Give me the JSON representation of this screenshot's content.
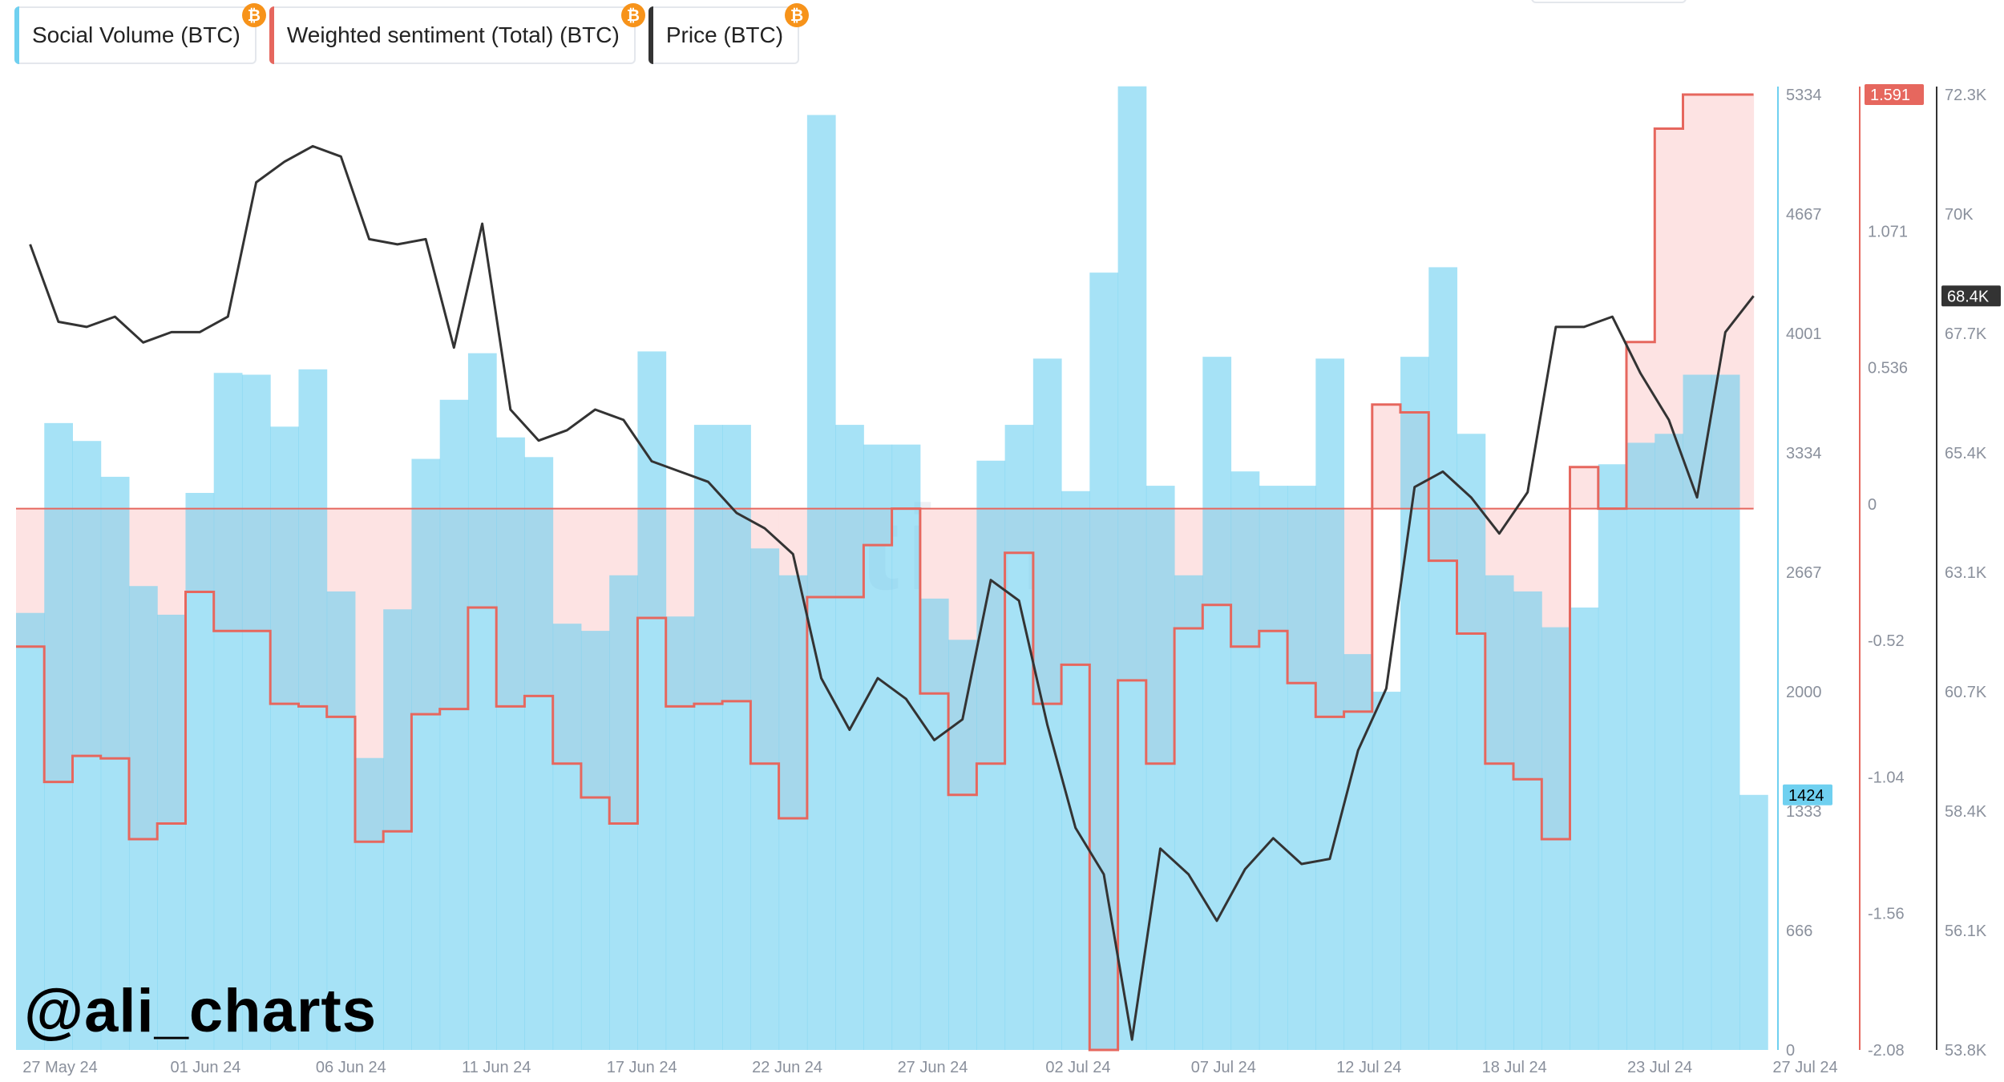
{
  "legend": [
    {
      "label": "Social Volume (BTC)",
      "color": "#6fd0f0",
      "icon": "bitcoin-icon"
    },
    {
      "label": "Weighted sentiment (Total) (BTC)",
      "color": "#e6675e",
      "icon": "bitcoin-icon"
    },
    {
      "label": "Price (BTC)",
      "color": "#333333",
      "icon": "bitcoin-icon"
    }
  ],
  "author_handle": "@ali_charts",
  "watermark": "santiment",
  "chart_data": {
    "type": "bar",
    "x_tick_labels": [
      "27 May 24",
      "01 Jun 24",
      "06 Jun 24",
      "11 Jun 24",
      "17 Jun 24",
      "22 Jun 24",
      "27 Jun 24",
      "02 Jul 24",
      "07 Jul 24",
      "12 Jul 24",
      "18 Jul 24",
      "23 Jul 24",
      "27 Jul 24"
    ],
    "x_range": [
      "2024-05-27",
      "2024-07-27"
    ],
    "axes": {
      "social_volume": {
        "ticks": [
          "5334",
          "4667",
          "4001",
          "3334",
          "2667",
          "2000",
          "1333",
          "666",
          "0"
        ],
        "range": [
          0,
          5334
        ],
        "current": "1424"
      },
      "sentiment": {
        "ticks": [
          "1.591",
          "1.071",
          "0.536",
          "0",
          "-0.52",
          "-1.04",
          "-1.56",
          "-2.08"
        ],
        "range": [
          -2.08,
          1.591
        ],
        "current": "1.591"
      },
      "price": {
        "ticks": [
          "72.3K",
          "70K",
          "67.7K",
          "65.4K",
          "63.1K",
          "60.7K",
          "58.4K",
          "56.1K",
          "53.8K"
        ],
        "range": [
          53800,
          72300
        ],
        "current": "68.4K"
      }
    },
    "series": [
      {
        "name": "Social Volume (BTC)",
        "type": "bar-step",
        "color": "#6fd0f0",
        "dates": [
          "2024-05-27",
          "2024-05-28",
          "2024-05-29",
          "2024-05-30",
          "2024-05-31",
          "2024-06-01",
          "2024-06-02",
          "2024-06-03",
          "2024-06-04",
          "2024-06-05",
          "2024-06-06",
          "2024-06-07",
          "2024-06-08",
          "2024-06-09",
          "2024-06-10",
          "2024-06-11",
          "2024-06-12",
          "2024-06-13",
          "2024-06-14",
          "2024-06-15",
          "2024-06-16",
          "2024-06-17",
          "2024-06-18",
          "2024-06-19",
          "2024-06-20",
          "2024-06-21",
          "2024-06-22",
          "2024-06-23",
          "2024-06-24",
          "2024-06-25",
          "2024-06-26",
          "2024-06-27",
          "2024-06-28",
          "2024-06-29",
          "2024-06-30",
          "2024-07-01",
          "2024-07-02",
          "2024-07-03",
          "2024-07-04",
          "2024-07-05",
          "2024-07-06",
          "2024-07-07",
          "2024-07-08",
          "2024-07-09",
          "2024-07-10",
          "2024-07-11",
          "2024-07-12",
          "2024-07-13",
          "2024-07-14",
          "2024-07-15",
          "2024-07-16",
          "2024-07-17",
          "2024-07-18",
          "2024-07-19",
          "2024-07-20",
          "2024-07-21",
          "2024-07-22",
          "2024-07-23",
          "2024-07-24",
          "2024-07-25",
          "2024-07-26",
          "2024-07-27"
        ],
        "values": [
          2440,
          3500,
          3400,
          3200,
          2590,
          2430,
          3110,
          3780,
          3770,
          3480,
          3800,
          2560,
          1630,
          2460,
          3300,
          3630,
          3890,
          3420,
          3310,
          2380,
          2340,
          2650,
          3900,
          2420,
          3490,
          3490,
          2800,
          2650,
          5220,
          3490,
          3380,
          3380,
          2520,
          2290,
          3290,
          3490,
          3860,
          3120,
          4340,
          5380,
          3150,
          2650,
          3870,
          3230,
          3150,
          3150,
          3860,
          2210,
          2000,
          3870,
          4370,
          3440,
          2650,
          2560,
          2360,
          2470,
          3270,
          3390,
          3440,
          3770,
          3770,
          1424
        ]
      },
      {
        "name": "Weighted sentiment (Total) (BTC)",
        "type": "step-line",
        "color": "#e6675e",
        "dates": [
          "2024-05-27",
          "2024-05-28",
          "2024-05-29",
          "2024-05-30",
          "2024-05-31",
          "2024-06-01",
          "2024-06-02",
          "2024-06-03",
          "2024-06-04",
          "2024-06-05",
          "2024-06-06",
          "2024-06-07",
          "2024-06-08",
          "2024-06-09",
          "2024-06-10",
          "2024-06-11",
          "2024-06-12",
          "2024-06-13",
          "2024-06-14",
          "2024-06-15",
          "2024-06-16",
          "2024-06-17",
          "2024-06-18",
          "2024-06-19",
          "2024-06-20",
          "2024-06-21",
          "2024-06-22",
          "2024-06-23",
          "2024-06-24",
          "2024-06-25",
          "2024-06-26",
          "2024-06-27",
          "2024-06-28",
          "2024-06-29",
          "2024-06-30",
          "2024-07-01",
          "2024-07-02",
          "2024-07-03",
          "2024-07-04",
          "2024-07-05",
          "2024-07-06",
          "2024-07-07",
          "2024-07-08",
          "2024-07-09",
          "2024-07-10",
          "2024-07-11",
          "2024-07-12",
          "2024-07-13",
          "2024-07-14",
          "2024-07-15",
          "2024-07-16",
          "2024-07-17",
          "2024-07-18",
          "2024-07-19",
          "2024-07-20",
          "2024-07-21",
          "2024-07-22",
          "2024-07-23",
          "2024-07-24",
          "2024-07-25",
          "2024-07-26",
          "2024-07-27"
        ],
        "values": [
          -0.53,
          -1.05,
          -0.95,
          -0.96,
          -1.27,
          -1.21,
          -0.32,
          -0.47,
          -0.47,
          -0.75,
          -0.76,
          -0.8,
          -1.28,
          -1.24,
          -0.79,
          -0.77,
          -0.38,
          -0.76,
          -0.72,
          -0.98,
          -1.11,
          -1.21,
          -0.42,
          -0.76,
          -0.75,
          -0.74,
          -0.98,
          -1.19,
          -0.34,
          -0.34,
          -0.14,
          0.0,
          -0.71,
          -1.1,
          -0.98,
          -0.17,
          -0.75,
          -0.6,
          -2.08,
          -0.66,
          -0.98,
          -0.46,
          -0.37,
          -0.53,
          -0.47,
          -0.67,
          -0.8,
          -0.78,
          0.4,
          0.37,
          -0.2,
          -0.48,
          -0.98,
          -1.04,
          -1.27,
          0.16,
          0.0,
          0.64,
          1.46,
          1.591,
          1.591,
          1.591
        ]
      },
      {
        "name": "Price (BTC)",
        "type": "line",
        "color": "#333333",
        "dates": [
          "2024-05-27",
          "2024-05-28",
          "2024-05-29",
          "2024-05-30",
          "2024-05-31",
          "2024-06-01",
          "2024-06-02",
          "2024-06-03",
          "2024-06-04",
          "2024-06-05",
          "2024-06-06",
          "2024-06-07",
          "2024-06-08",
          "2024-06-09",
          "2024-06-10",
          "2024-06-11",
          "2024-06-12",
          "2024-06-13",
          "2024-06-14",
          "2024-06-15",
          "2024-06-16",
          "2024-06-17",
          "2024-06-18",
          "2024-06-19",
          "2024-06-20",
          "2024-06-21",
          "2024-06-22",
          "2024-06-23",
          "2024-06-24",
          "2024-06-25",
          "2024-06-26",
          "2024-06-27",
          "2024-06-28",
          "2024-06-29",
          "2024-06-30",
          "2024-07-01",
          "2024-07-02",
          "2024-07-03",
          "2024-07-04",
          "2024-07-05",
          "2024-07-06",
          "2024-07-07",
          "2024-07-08",
          "2024-07-09",
          "2024-07-10",
          "2024-07-11",
          "2024-07-12",
          "2024-07-13",
          "2024-07-14",
          "2024-07-15",
          "2024-07-16",
          "2024-07-17",
          "2024-07-18",
          "2024-07-19",
          "2024-07-20",
          "2024-07-21",
          "2024-07-22",
          "2024-07-23",
          "2024-07-24",
          "2024-07-25",
          "2024-07-26",
          "2024-07-27"
        ],
        "values": [
          69400,
          67900,
          67800,
          68000,
          67500,
          67700,
          67700,
          68000,
          70600,
          71000,
          71300,
          71100,
          69500,
          69400,
          69500,
          67400,
          69800,
          66200,
          65600,
          65800,
          66200,
          66000,
          65200,
          65000,
          64800,
          64200,
          63900,
          63400,
          61000,
          60000,
          61000,
          60600,
          59800,
          60200,
          62900,
          62500,
          60100,
          58100,
          57200,
          54000,
          57700,
          57200,
          56300,
          57300,
          57900,
          57400,
          57500,
          59600,
          60800,
          64700,
          65000,
          64500,
          63800,
          64600,
          67800,
          67800,
          68000,
          66900,
          66000,
          64500,
          67700,
          68400
        ]
      }
    ]
  }
}
